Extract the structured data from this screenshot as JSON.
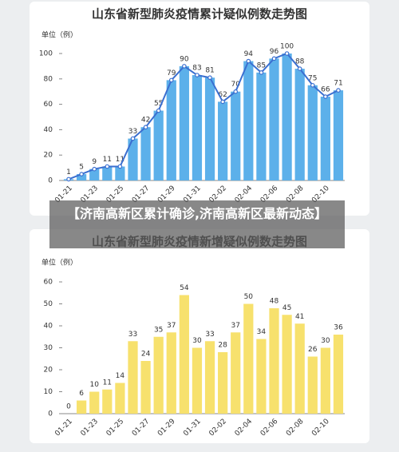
{
  "chart_data": [
    {
      "type": "bar",
      "title": "山东省新型肺炎疫情累计疑似例数走势图",
      "y_label": "单位（例）",
      "categories": [
        "01-21",
        null,
        "01-23",
        null,
        "01-25",
        null,
        "01-27",
        null,
        "01-29",
        null,
        "01-31",
        null,
        "02-02",
        null,
        "02-04",
        null,
        "02-06",
        null,
        "02-08",
        null,
        "02-10",
        null
      ],
      "values": [
        1,
        5,
        9,
        11,
        11,
        33,
        42,
        55,
        79,
        90,
        83,
        81,
        62,
        70,
        94,
        85,
        96,
        100,
        88,
        75,
        66,
        71
      ],
      "color": "#5cb0ea",
      "line_color": "#3b6fd0",
      "ylim": [
        0,
        100
      ],
      "yticks": [
        0,
        20,
        40,
        60,
        80,
        100
      ]
    },
    {
      "type": "bar",
      "title": "山东省新型肺炎疫情新增疑似例数走势图",
      "y_label": "单位（例）",
      "categories": [
        "01-21",
        null,
        "01-23",
        null,
        "01-25",
        null,
        "01-27",
        null,
        "01-29",
        null,
        "01-31",
        null,
        "02-02",
        null,
        "02-04",
        null,
        "02-06",
        null,
        "02-08",
        null,
        "02-10",
        null
      ],
      "values": [
        0,
        6,
        10,
        11,
        14,
        33,
        24,
        35,
        37,
        54,
        30,
        33,
        28,
        37,
        50,
        34,
        48,
        45,
        41,
        26,
        30,
        36
      ],
      "color": "#f7e16d",
      "ylim": [
        0,
        60
      ],
      "yticks": [
        0,
        10,
        20,
        30,
        40,
        50,
        60
      ]
    }
  ],
  "overlay": {
    "text": "【济南高新区累计确诊,济南高新区最新动态】"
  }
}
